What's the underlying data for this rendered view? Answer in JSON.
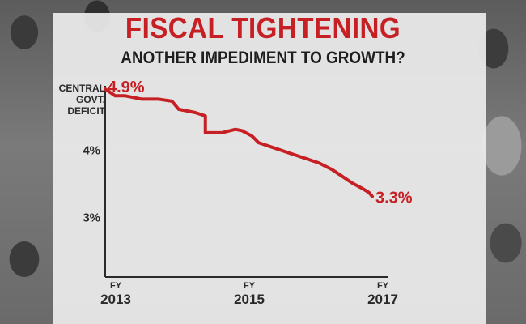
{
  "header": {
    "title": "FISCAL TIGHTENING",
    "subtitle": "ANOTHER IMPEDIMENT TO GROWTH?"
  },
  "chart_data": {
    "type": "line",
    "title": "FISCAL TIGHTENING",
    "subtitle": "ANOTHER IMPEDIMENT TO GROWTH?",
    "ylabel_lines": [
      "CENTRAL",
      "GOVT.",
      "DEFICIT"
    ],
    "x_ticks": [
      {
        "x": 2013,
        "top": "FY",
        "bottom": "2013"
      },
      {
        "x": 2015,
        "top": "FY",
        "bottom": "2015"
      },
      {
        "x": 2017,
        "top": "FY",
        "bottom": "2017"
      }
    ],
    "y_ticks": [
      {
        "y": 4.0,
        "label": "4%"
      },
      {
        "y": 3.0,
        "label": "3%"
      }
    ],
    "xlim": [
      2013,
      2017
    ],
    "ylim": [
      2.1,
      4.9
    ],
    "grid": false,
    "series": [
      {
        "color": "#c62024",
        "x": [
          2013.0,
          2013.15,
          2013.3,
          2013.55,
          2013.8,
          2014.0,
          2014.1,
          2014.35,
          2014.5,
          2014.5,
          2014.75,
          2014.95,
          2015.05,
          2015.2,
          2015.3,
          2015.45,
          2015.6,
          2015.75,
          2015.9,
          2016.05,
          2016.2,
          2016.4,
          2016.55,
          2016.7,
          2016.85,
          2016.95,
          2017.0
        ],
        "y": [
          4.9,
          4.8,
          4.8,
          4.75,
          4.75,
          4.72,
          4.6,
          4.55,
          4.5,
          4.25,
          4.25,
          4.3,
          4.28,
          4.2,
          4.1,
          4.05,
          4.0,
          3.95,
          3.9,
          3.85,
          3.8,
          3.7,
          3.6,
          3.5,
          3.42,
          3.36,
          3.3
        ]
      }
    ],
    "data_labels": [
      {
        "x": 2013.0,
        "y": 4.9,
        "text": "4.9%",
        "anchor": "start"
      },
      {
        "x": 2017.0,
        "y": 3.3,
        "text": "3.3%",
        "anchor": "start"
      }
    ]
  }
}
